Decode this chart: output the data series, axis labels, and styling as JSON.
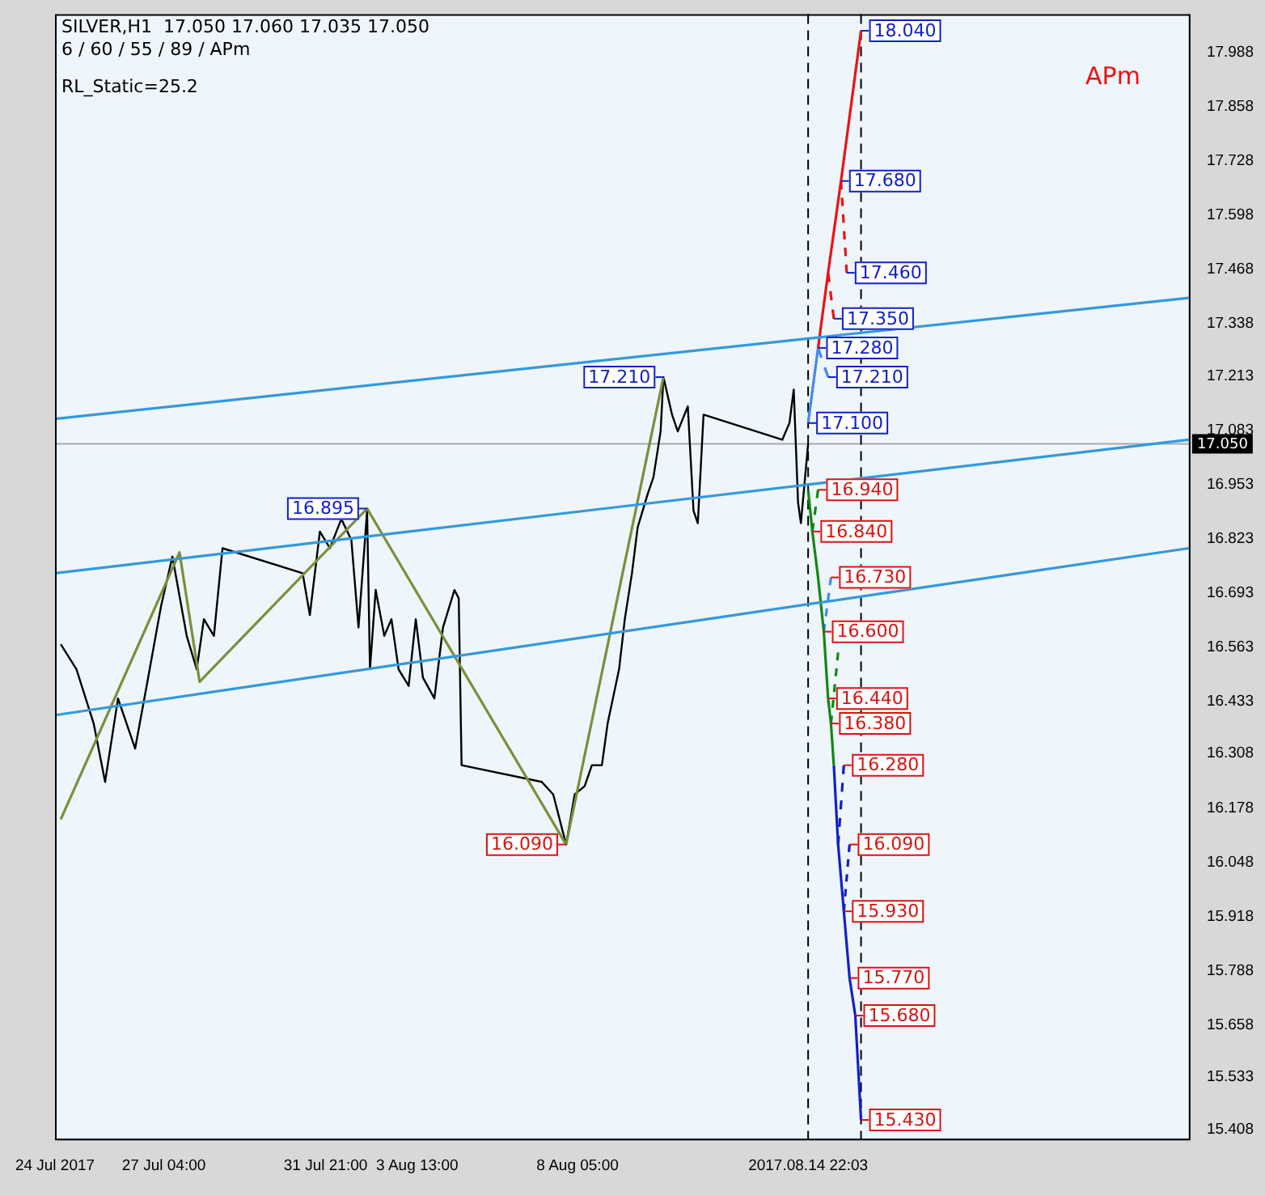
{
  "chart_data": {
    "type": "line",
    "title": "SILVER,H1  17.050 17.060 17.035 17.050",
    "subtitle": "6 / 60 / 55 / 89 / APm",
    "xlim": [
      "2017-07-24T00:00",
      "2017-08-26T00:00"
    ],
    "xticks": [
      {
        "value": "2017-07-24T00:00",
        "label": "24 Jul 2017"
      },
      {
        "value": "2017-07-27T04:00",
        "label": "27 Jul 04:00"
      },
      {
        "value": "2017-07-31T21:00",
        "label": "31 Jul 21:00"
      },
      {
        "value": "2017-08-03T13:00",
        "label": "3 Aug 13:00"
      },
      {
        "value": "2017-08-08T05:00",
        "label": "8 Aug 05:00"
      },
      {
        "value": "2017-08-14T22:03",
        "label": "2017.08.14 22:03"
      }
    ],
    "ylim": [
      15.385,
      18.08
    ],
    "yticks": [
      15.408,
      15.533,
      15.658,
      15.788,
      15.918,
      16.048,
      16.178,
      16.308,
      16.433,
      16.563,
      16.693,
      16.823,
      16.953,
      17.083,
      17.213,
      17.338,
      17.468,
      17.598,
      17.728,
      17.858,
      17.988
    ],
    "grid": false,
    "legend": false,
    "marker": "none",
    "line_style": "solid",
    "series": [
      {
        "color": "#3399dd",
        "x": [
          "2017-07-24T00:00",
          "2017-08-26T00:00"
        ],
        "values": [
          17.11,
          17.4
        ]
      },
      {
        "color": "#3399dd",
        "x": [
          "2017-07-24T00:00",
          "2017-08-26T00:00"
        ],
        "values": [
          16.74,
          17.06
        ]
      },
      {
        "color": "#3399dd",
        "x": [
          "2017-07-24T00:00",
          "2017-08-26T00:00"
        ],
        "values": [
          16.4,
          16.8
        ]
      },
      {
        "color": "#7a8f3a",
        "x": [
          "2017-07-24T04:00",
          "2017-07-27T15:00",
          "2017-07-28T05:00",
          "2017-08-02T02:00",
          "2017-08-07T21:00",
          "2017-08-10T17:00"
        ],
        "values": [
          16.15,
          16.79,
          16.48,
          16.895,
          16.09,
          17.21
        ],
        "value_labels": [
          null,
          null,
          null,
          "16.895",
          "16.090",
          "17.210"
        ]
      },
      {
        "color": "#000000",
        "x": [
          "2017-07-24T04:00",
          "2017-07-24T15:00",
          "2017-07-25T03:00",
          "2017-07-25T11:00",
          "2017-07-25T20:00",
          "2017-07-26T08:00",
          "2017-07-26T16:00",
          "2017-07-27T02:00",
          "2017-07-27T10:00",
          "2017-07-27T20:00",
          "2017-07-28T03:00",
          "2017-07-28T08:00",
          "2017-07-28T15:00",
          "2017-07-28T21:00",
          "2017-07-31T05:00",
          "2017-07-31T10:00",
          "2017-07-31T17:00",
          "2017-08-01T00:00",
          "2017-08-01T08:00",
          "2017-08-01T15:00",
          "2017-08-01T20:00",
          "2017-08-02T02:00",
          "2017-08-02T04:00",
          "2017-08-02T08:00",
          "2017-08-02T14:00",
          "2017-08-02T19:00",
          "2017-08-03T00:00",
          "2017-08-03T07:00",
          "2017-08-03T12:00",
          "2017-08-03T17:00",
          "2017-08-04T01:00",
          "2017-08-04T07:00",
          "2017-08-04T15:00",
          "2017-08-04T18:00",
          "2017-08-04T20:00",
          "2017-08-07T04:00",
          "2017-08-07T12:00",
          "2017-08-07T21:00",
          "2017-08-08T03:00",
          "2017-08-08T10:00",
          "2017-08-08T15:00",
          "2017-08-08T22:00",
          "2017-08-09T02:00",
          "2017-08-09T10:00",
          "2017-08-09T14:00",
          "2017-08-09T19:00",
          "2017-08-09T23:00",
          "2017-08-10T06:00",
          "2017-08-10T10:00",
          "2017-08-10T15:00",
          "2017-08-10T17:00",
          "2017-08-10T23:00",
          "2017-08-11T03:00",
          "2017-08-11T10:00",
          "2017-08-11T14:00",
          "2017-08-11T17:00",
          "2017-08-11T21:00",
          "2017-08-14T04:00",
          "2017-08-14T09:00",
          "2017-08-14T12:00",
          "2017-08-14T15:00",
          "2017-08-14T17:00",
          "2017-08-14T22:03"
        ],
        "values": [
          16.57,
          16.51,
          16.38,
          16.24,
          16.44,
          16.32,
          16.47,
          16.66,
          16.78,
          16.59,
          16.51,
          16.63,
          16.59,
          16.8,
          16.74,
          16.64,
          16.84,
          16.8,
          16.87,
          16.82,
          16.61,
          16.89,
          16.51,
          16.7,
          16.59,
          16.63,
          16.51,
          16.47,
          16.63,
          16.49,
          16.44,
          16.61,
          16.7,
          16.68,
          16.28,
          16.24,
          16.21,
          16.09,
          16.21,
          16.23,
          16.28,
          16.28,
          16.38,
          16.51,
          16.63,
          16.74,
          16.85,
          16.93,
          16.97,
          17.08,
          17.21,
          17.12,
          17.08,
          17.14,
          16.89,
          16.86,
          17.12,
          17.06,
          17.1,
          17.18,
          16.91,
          16.86,
          17.05
        ]
      },
      {
        "color": "#4488ee",
        "x": [
          "2017-08-14T22:03",
          "2017-08-15T05:00"
        ],
        "values": [
          17.1,
          17.28
        ],
        "value_labels": [
          "17.100",
          "17.280"
        ]
      },
      {
        "color": "#4488ee",
        "x": [
          "2017-08-15T05:00",
          "2017-08-15T12:00"
        ],
        "values": [
          17.28,
          17.21
        ],
        "value_labels": [
          null,
          "17.210"
        ],
        "line_style": "dashed"
      },
      {
        "color": "#ee1111",
        "x": [
          "2017-08-15T05:00",
          "2017-08-15T12:00",
          "2017-08-15T21:00",
          "2017-08-16T11:00"
        ],
        "values": [
          17.28,
          17.46,
          17.68,
          18.04
        ],
        "value_labels": [
          null,
          null,
          "17.680",
          "18.040"
        ]
      },
      {
        "color": "#ee1111",
        "x": [
          "2017-08-15T12:00",
          "2017-08-15T16:00"
        ],
        "values": [
          17.46,
          17.35
        ],
        "value_labels": [
          null,
          "17.350"
        ],
        "line_style": "dashed"
      },
      {
        "color": "#ee1111",
        "x": [
          "2017-08-15T21:00",
          "2017-08-16T01:00"
        ],
        "values": [
          17.68,
          17.46
        ],
        "value_labels": [
          null,
          "17.460"
        ],
        "line_style": "dashed"
      },
      {
        "color": "#118811",
        "x": [
          "2017-08-14T22:03",
          "2017-08-15T01:00",
          "2017-08-15T05:00",
          "2017-08-15T09:00",
          "2017-08-15T12:00",
          "2017-08-15T14:00",
          "2017-08-15T16:00"
        ],
        "values": [
          16.94,
          16.84,
          16.73,
          16.6,
          16.44,
          16.38,
          16.28
        ],
        "value_labels": [
          null,
          "16.840",
          null,
          "16.600",
          "16.440",
          "16.380",
          null
        ]
      },
      {
        "color": "#118811",
        "x": [
          "2017-08-15T01:00",
          "2017-08-15T05:00"
        ],
        "values": [
          16.84,
          16.94
        ],
        "value_labels": [
          null,
          "16.940"
        ],
        "line_style": "dashed"
      },
      {
        "color": "#118811",
        "x": [
          "2017-08-15T14:00",
          "2017-08-15T19:00"
        ],
        "values": [
          16.38,
          16.55
        ],
        "line_style": "dashed"
      },
      {
        "color": "#4488ee",
        "x": [
          "2017-08-15T09:00",
          "2017-08-15T14:00"
        ],
        "values": [
          16.6,
          16.73
        ],
        "value_labels": [
          null,
          "16.730"
        ],
        "line_style": "dashed"
      },
      {
        "color": "#1020cc",
        "x": [
          "2017-08-15T16:00",
          "2017-08-15T19:00",
          "2017-08-15T23:00",
          "2017-08-16T03:00",
          "2017-08-16T07:00",
          "2017-08-16T11:00"
        ],
        "values": [
          16.28,
          16.09,
          15.93,
          15.77,
          15.68,
          15.43
        ],
        "value_labels": [
          null,
          null,
          "15.930",
          "15.770",
          "15.680",
          "15.430"
        ]
      },
      {
        "color": "#1020cc",
        "x": [
          "2017-08-15T19:00",
          "2017-08-15T23:00"
        ],
        "values": [
          16.09,
          16.28
        ],
        "value_labels": [
          null,
          "16.280"
        ],
        "line_style": "dashed"
      },
      {
        "color": "#1020cc",
        "x": [
          "2017-08-15T23:00",
          "2017-08-16T03:00"
        ],
        "values": [
          15.93,
          16.09
        ],
        "value_labels": [
          null,
          "16.090"
        ],
        "line_style": "dashed"
      }
    ],
    "ref_lines": [
      {
        "axis": "y",
        "value": 17.05,
        "label": "17.050",
        "color": "#aaaaaa"
      },
      {
        "axis": "x",
        "value": "2017-08-14T22:03",
        "color": "#000000",
        "line_style": "dashed"
      },
      {
        "axis": "x",
        "value": "2017-08-16T11:00",
        "color": "#000000",
        "line_style": "dashed"
      }
    ],
    "annotations": [
      "RL_Static=25.2",
      "APm"
    ]
  }
}
